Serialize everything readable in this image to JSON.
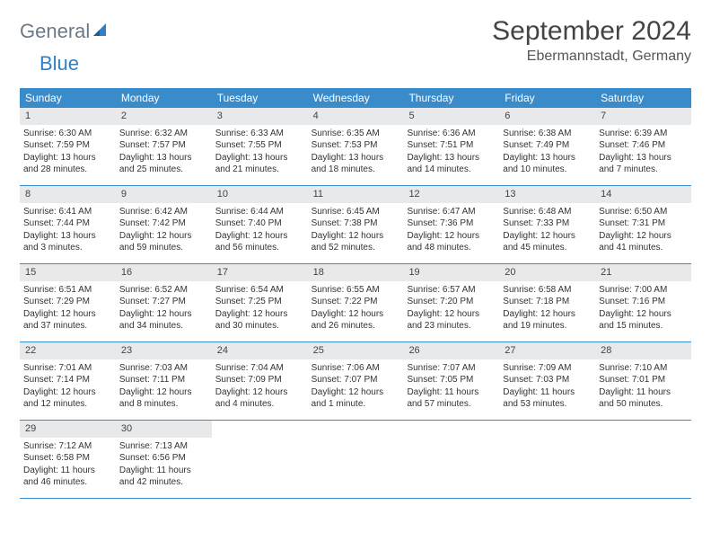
{
  "logo": {
    "gray": "General",
    "blue": "Blue"
  },
  "title": "September 2024",
  "location": "Ebermannstadt, Germany",
  "colors": {
    "header_bg": "#3a8bc9",
    "header_text": "#ffffff",
    "daynum_bg": "#e7e9eb",
    "logo_gray": "#6b7a89",
    "logo_blue": "#2f80c6",
    "border": "#3a8bc9"
  },
  "typography": {
    "title_fontsize": 30,
    "location_fontsize": 16,
    "dow_fontsize": 12,
    "body_fontsize": 10
  },
  "dow": [
    "Sunday",
    "Monday",
    "Tuesday",
    "Wednesday",
    "Thursday",
    "Friday",
    "Saturday"
  ],
  "weeks": [
    [
      {
        "n": "1",
        "sr": "Sunrise: 6:30 AM",
        "ss": "Sunset: 7:59 PM",
        "dl": "Daylight: 13 hours and 28 minutes."
      },
      {
        "n": "2",
        "sr": "Sunrise: 6:32 AM",
        "ss": "Sunset: 7:57 PM",
        "dl": "Daylight: 13 hours and 25 minutes."
      },
      {
        "n": "3",
        "sr": "Sunrise: 6:33 AM",
        "ss": "Sunset: 7:55 PM",
        "dl": "Daylight: 13 hours and 21 minutes."
      },
      {
        "n": "4",
        "sr": "Sunrise: 6:35 AM",
        "ss": "Sunset: 7:53 PM",
        "dl": "Daylight: 13 hours and 18 minutes."
      },
      {
        "n": "5",
        "sr": "Sunrise: 6:36 AM",
        "ss": "Sunset: 7:51 PM",
        "dl": "Daylight: 13 hours and 14 minutes."
      },
      {
        "n": "6",
        "sr": "Sunrise: 6:38 AM",
        "ss": "Sunset: 7:49 PM",
        "dl": "Daylight: 13 hours and 10 minutes."
      },
      {
        "n": "7",
        "sr": "Sunrise: 6:39 AM",
        "ss": "Sunset: 7:46 PM",
        "dl": "Daylight: 13 hours and 7 minutes."
      }
    ],
    [
      {
        "n": "8",
        "sr": "Sunrise: 6:41 AM",
        "ss": "Sunset: 7:44 PM",
        "dl": "Daylight: 13 hours and 3 minutes."
      },
      {
        "n": "9",
        "sr": "Sunrise: 6:42 AM",
        "ss": "Sunset: 7:42 PM",
        "dl": "Daylight: 12 hours and 59 minutes."
      },
      {
        "n": "10",
        "sr": "Sunrise: 6:44 AM",
        "ss": "Sunset: 7:40 PM",
        "dl": "Daylight: 12 hours and 56 minutes."
      },
      {
        "n": "11",
        "sr": "Sunrise: 6:45 AM",
        "ss": "Sunset: 7:38 PM",
        "dl": "Daylight: 12 hours and 52 minutes."
      },
      {
        "n": "12",
        "sr": "Sunrise: 6:47 AM",
        "ss": "Sunset: 7:36 PM",
        "dl": "Daylight: 12 hours and 48 minutes."
      },
      {
        "n": "13",
        "sr": "Sunrise: 6:48 AM",
        "ss": "Sunset: 7:33 PM",
        "dl": "Daylight: 12 hours and 45 minutes."
      },
      {
        "n": "14",
        "sr": "Sunrise: 6:50 AM",
        "ss": "Sunset: 7:31 PM",
        "dl": "Daylight: 12 hours and 41 minutes."
      }
    ],
    [
      {
        "n": "15",
        "sr": "Sunrise: 6:51 AM",
        "ss": "Sunset: 7:29 PM",
        "dl": "Daylight: 12 hours and 37 minutes."
      },
      {
        "n": "16",
        "sr": "Sunrise: 6:52 AM",
        "ss": "Sunset: 7:27 PM",
        "dl": "Daylight: 12 hours and 34 minutes."
      },
      {
        "n": "17",
        "sr": "Sunrise: 6:54 AM",
        "ss": "Sunset: 7:25 PM",
        "dl": "Daylight: 12 hours and 30 minutes."
      },
      {
        "n": "18",
        "sr": "Sunrise: 6:55 AM",
        "ss": "Sunset: 7:22 PM",
        "dl": "Daylight: 12 hours and 26 minutes."
      },
      {
        "n": "19",
        "sr": "Sunrise: 6:57 AM",
        "ss": "Sunset: 7:20 PM",
        "dl": "Daylight: 12 hours and 23 minutes."
      },
      {
        "n": "20",
        "sr": "Sunrise: 6:58 AM",
        "ss": "Sunset: 7:18 PM",
        "dl": "Daylight: 12 hours and 19 minutes."
      },
      {
        "n": "21",
        "sr": "Sunrise: 7:00 AM",
        "ss": "Sunset: 7:16 PM",
        "dl": "Daylight: 12 hours and 15 minutes."
      }
    ],
    [
      {
        "n": "22",
        "sr": "Sunrise: 7:01 AM",
        "ss": "Sunset: 7:14 PM",
        "dl": "Daylight: 12 hours and 12 minutes."
      },
      {
        "n": "23",
        "sr": "Sunrise: 7:03 AM",
        "ss": "Sunset: 7:11 PM",
        "dl": "Daylight: 12 hours and 8 minutes."
      },
      {
        "n": "24",
        "sr": "Sunrise: 7:04 AM",
        "ss": "Sunset: 7:09 PM",
        "dl": "Daylight: 12 hours and 4 minutes."
      },
      {
        "n": "25",
        "sr": "Sunrise: 7:06 AM",
        "ss": "Sunset: 7:07 PM",
        "dl": "Daylight: 12 hours and 1 minute."
      },
      {
        "n": "26",
        "sr": "Sunrise: 7:07 AM",
        "ss": "Sunset: 7:05 PM",
        "dl": "Daylight: 11 hours and 57 minutes."
      },
      {
        "n": "27",
        "sr": "Sunrise: 7:09 AM",
        "ss": "Sunset: 7:03 PM",
        "dl": "Daylight: 11 hours and 53 minutes."
      },
      {
        "n": "28",
        "sr": "Sunrise: 7:10 AM",
        "ss": "Sunset: 7:01 PM",
        "dl": "Daylight: 11 hours and 50 minutes."
      }
    ],
    [
      {
        "n": "29",
        "sr": "Sunrise: 7:12 AM",
        "ss": "Sunset: 6:58 PM",
        "dl": "Daylight: 11 hours and 46 minutes."
      },
      {
        "n": "30",
        "sr": "Sunrise: 7:13 AM",
        "ss": "Sunset: 6:56 PM",
        "dl": "Daylight: 11 hours and 42 minutes."
      },
      {
        "empty": true
      },
      {
        "empty": true
      },
      {
        "empty": true
      },
      {
        "empty": true
      },
      {
        "empty": true
      }
    ]
  ]
}
